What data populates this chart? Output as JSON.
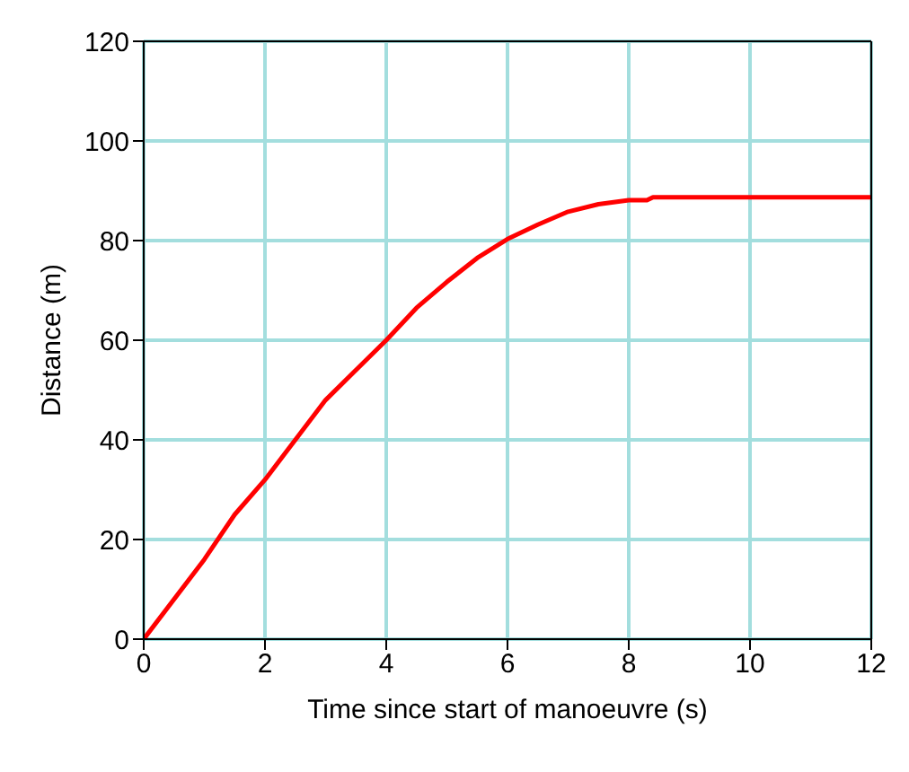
{
  "chart_data": {
    "type": "line",
    "xlabel": "Time since start of manoeuvre (s)",
    "ylabel": "Distance (m)",
    "x": [
      0,
      1,
      1.5,
      2,
      2.5,
      3,
      3.5,
      4,
      4.5,
      5,
      5.5,
      6,
      6.5,
      7,
      7.5,
      8,
      8.3,
      8.4,
      12
    ],
    "series": [
      {
        "color": "#ff0000",
        "values": [
          0,
          16,
          25,
          32,
          40,
          48,
          54,
          60,
          66.5,
          71.7,
          76.5,
          80.3,
          83.2,
          85.8,
          87.3,
          88.1,
          88.1,
          88.7,
          88.7
        ]
      }
    ],
    "xlim": [
      0,
      12
    ],
    "xticks": [
      0,
      2,
      4,
      6,
      8,
      10,
      12
    ],
    "ylim": [
      0,
      120
    ],
    "yticks": [
      0,
      20,
      40,
      60,
      80,
      100,
      120
    ],
    "grid": true,
    "legend": false,
    "marker": "none",
    "line_style": "solid"
  }
}
